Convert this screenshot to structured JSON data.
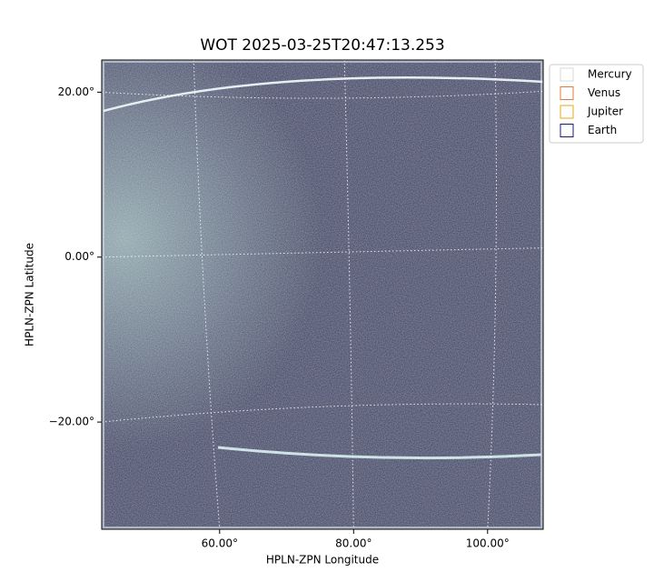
{
  "chart_data": {
    "type": "image",
    "title": "WOT 2025-03-25T20:47:13.253",
    "xlabel": "HPLN-ZPN Longitude",
    "ylabel": "HPLN-ZPN Latitude",
    "xlim": [
      42.4,
      108.3
    ],
    "ylim": [
      -33,
      23.9
    ],
    "xticks": [
      {
        "value": 60,
        "label": "60.00°"
      },
      {
        "value": 80,
        "label": "80.00°"
      },
      {
        "value": 100,
        "label": "100.00°"
      }
    ],
    "yticks": [
      {
        "value": -20,
        "label": "−20.00°"
      },
      {
        "value": 0,
        "label": "0.00°"
      },
      {
        "value": 20,
        "label": "20.00°"
      }
    ],
    "grid": true,
    "legend_position": "upper-right-outside",
    "legend": [
      {
        "name": "Mercury",
        "color": "#d9d9d9"
      },
      {
        "name": "Venus",
        "color": "#e07b39"
      },
      {
        "name": "Jupiter",
        "color": "#e6a817"
      },
      {
        "name": "Earth",
        "color": "#1a1a7a"
      }
    ]
  }
}
